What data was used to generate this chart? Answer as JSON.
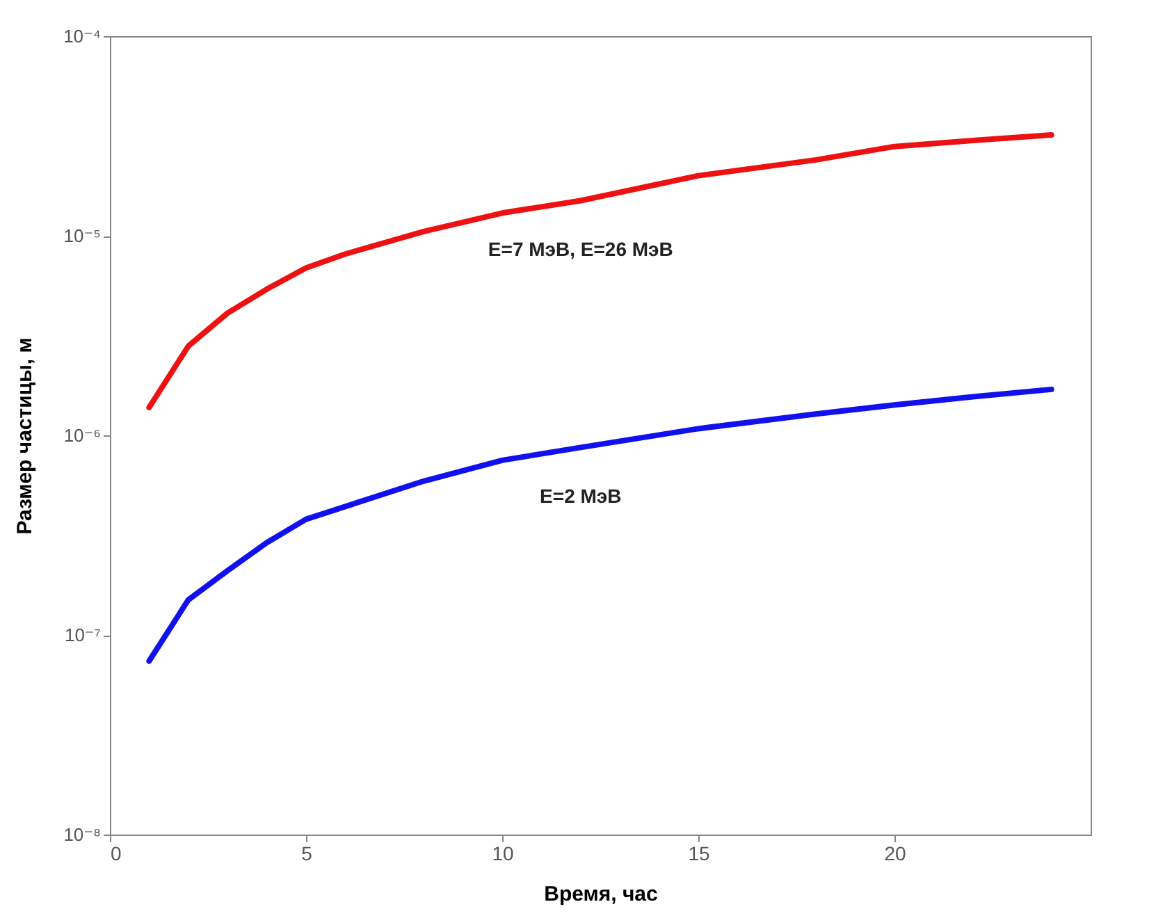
{
  "chart_data": {
    "type": "line",
    "xlabel": "Время, час",
    "ylabel": "Размер частицы, м",
    "log": "y",
    "xlim": [
      0,
      25
    ],
    "xticks": [
      0,
      5,
      10,
      15,
      20
    ],
    "ylim": [
      1e-08,
      0.0001
    ],
    "yticks": [
      {
        "value": 1e-08,
        "label": "10⁻⁸"
      },
      {
        "value": 1e-07,
        "label": "10⁻⁷"
      },
      {
        "value": 1e-06,
        "label": "10⁻⁶"
      },
      {
        "value": 1e-05,
        "label": "10⁻⁵"
      },
      {
        "value": 0.0001,
        "label": "10⁻⁴"
      }
    ],
    "grid": false,
    "line_style": "solid",
    "marker": "none",
    "series": [
      {
        "name": "E=7 МэВ, E=26 МэВ",
        "color": "#ee1111",
        "x": [
          1,
          2,
          3,
          4,
          5,
          6,
          8,
          10,
          12,
          15,
          18,
          20,
          22,
          24
        ],
        "values": [
          1.38e-06,
          2.8e-06,
          4.1e-06,
          5.4e-06,
          6.9e-06,
          8.1e-06,
          1.05e-05,
          1.3e-05,
          1.5e-05,
          2e-05,
          2.4e-05,
          2.8e-05,
          3e-05,
          3.2e-05
        ]
      },
      {
        "name": "E=2 МэВ",
        "color": "#1111ee",
        "x": [
          1,
          2,
          3,
          4,
          5,
          6,
          8,
          10,
          12,
          15,
          18,
          20,
          22,
          24
        ],
        "values": [
          7.4e-08,
          1.5e-07,
          2.1e-07,
          2.9e-07,
          3.8e-07,
          4.4e-07,
          5.9e-07,
          7.5e-07,
          8.7e-07,
          1.08e-06,
          1.28e-06,
          1.42e-06,
          1.56e-06,
          1.7e-06
        ]
      }
    ]
  }
}
